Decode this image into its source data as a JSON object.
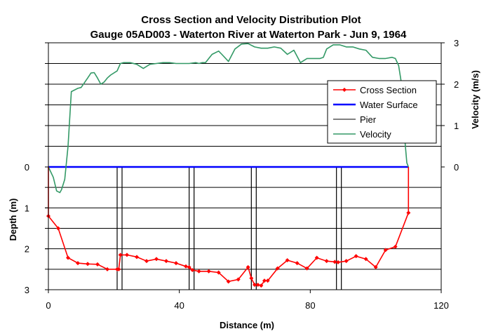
{
  "chart_data": {
    "type": "line",
    "title": "Cross Section and Velocity Distribution Plot",
    "subtitle": "Gauge 05AD003 - Waterton River at Waterton Park - Jun 9, 1964",
    "xlabel": "Distance (m)",
    "ylabel_left": "Depth (m)",
    "ylabel_right": "Velocity (m/s)",
    "x_range": [
      0,
      120
    ],
    "x_ticks": [
      "0",
      "40",
      "80",
      "120"
    ],
    "depth_range": [
      0,
      3
    ],
    "depth_ticks": [
      "0",
      "1",
      "2",
      "3"
    ],
    "velocity_range": [
      0,
      3
    ],
    "velocity_ticks": [
      "0",
      "1",
      "2",
      "3"
    ],
    "grid": "horizontal",
    "legend_position": "right",
    "colors": {
      "cross_section": "#ff0000",
      "water_surface": "#0000ff",
      "pier": "#000000",
      "velocity": "#339966",
      "grid": "#000000"
    },
    "series": [
      {
        "name": "Cross Section",
        "x": [
          0,
          0,
          3,
          6,
          9,
          12,
          15,
          18,
          21,
          21.5,
          22,
          24,
          27,
          30,
          33,
          36,
          39,
          42,
          43,
          44,
          46,
          49,
          52,
          55,
          58,
          61,
          62,
          63,
          64,
          65,
          66,
          67,
          70,
          73,
          76,
          79,
          82,
          85,
          87.5,
          88.5,
          91,
          94,
          97,
          100,
          103,
          106,
          110,
          110
        ],
        "depth": [
          0,
          1.2,
          1.5,
          2.22,
          2.35,
          2.37,
          2.38,
          2.5,
          2.5,
          2.5,
          2.15,
          2.15,
          2.2,
          2.3,
          2.25,
          2.3,
          2.35,
          2.43,
          2.45,
          2.52,
          2.55,
          2.55,
          2.58,
          2.8,
          2.75,
          2.45,
          2.72,
          2.88,
          2.88,
          2.9,
          2.78,
          2.78,
          2.48,
          2.28,
          2.35,
          2.48,
          2.22,
          2.3,
          2.32,
          2.33,
          2.3,
          2.18,
          2.25,
          2.45,
          2.03,
          1.95,
          1.12,
          0
        ]
      },
      {
        "name": "Water Surface",
        "x": [
          0,
          110
        ],
        "depth": [
          0,
          0
        ]
      },
      {
        "name": "Pier",
        "piers": [
          {
            "x1": 21,
            "x2": 22.5,
            "top": 0,
            "bottom": 3
          },
          {
            "x1": 43,
            "x2": 44.5,
            "top": 0,
            "bottom": 3
          },
          {
            "x1": 62,
            "x2": 63.5,
            "top": 0,
            "bottom": 3
          },
          {
            "x1": 88,
            "x2": 89.5,
            "top": 0,
            "bottom": 3
          }
        ]
      },
      {
        "name": "Velocity",
        "x": [
          0,
          1.5,
          2.5,
          3.5,
          4,
          5,
          6,
          7,
          9,
          10,
          12,
          13,
          14,
          15,
          16,
          17,
          18,
          19,
          21,
          22,
          23,
          25,
          27,
          29,
          31,
          33,
          35,
          37,
          39,
          41,
          43,
          45,
          46,
          47,
          48,
          50,
          52,
          53,
          55,
          57,
          59,
          61,
          63,
          65,
          67,
          69,
          71,
          73,
          75,
          77,
          79,
          81,
          83,
          84,
          85,
          86,
          87,
          89,
          91,
          93,
          95,
          97,
          99,
          101,
          103,
          105,
          106,
          107,
          108,
          108.5,
          109,
          109.5,
          110
        ],
        "velocity": [
          0,
          -0.25,
          -0.58,
          -0.62,
          -0.55,
          -0.3,
          0.5,
          1.82,
          1.9,
          1.92,
          2.15,
          2.27,
          2.28,
          2.15,
          2.0,
          2.05,
          2.15,
          2.22,
          2.32,
          2.5,
          2.52,
          2.52,
          2.48,
          2.38,
          2.48,
          2.5,
          2.52,
          2.52,
          2.5,
          2.5,
          2.5,
          2.52,
          2.5,
          2.52,
          2.52,
          2.72,
          2.8,
          2.72,
          2.55,
          2.85,
          2.97,
          2.98,
          2.9,
          2.87,
          2.87,
          2.9,
          2.87,
          2.72,
          2.82,
          2.52,
          2.62,
          2.62,
          2.62,
          2.65,
          2.85,
          2.9,
          2.95,
          2.95,
          2.9,
          2.9,
          2.85,
          2.82,
          2.65,
          2.62,
          2.62,
          2.65,
          2.62,
          2.45,
          1.95,
          1.3,
          0.55,
          0.1,
          0
        ]
      }
    ]
  }
}
